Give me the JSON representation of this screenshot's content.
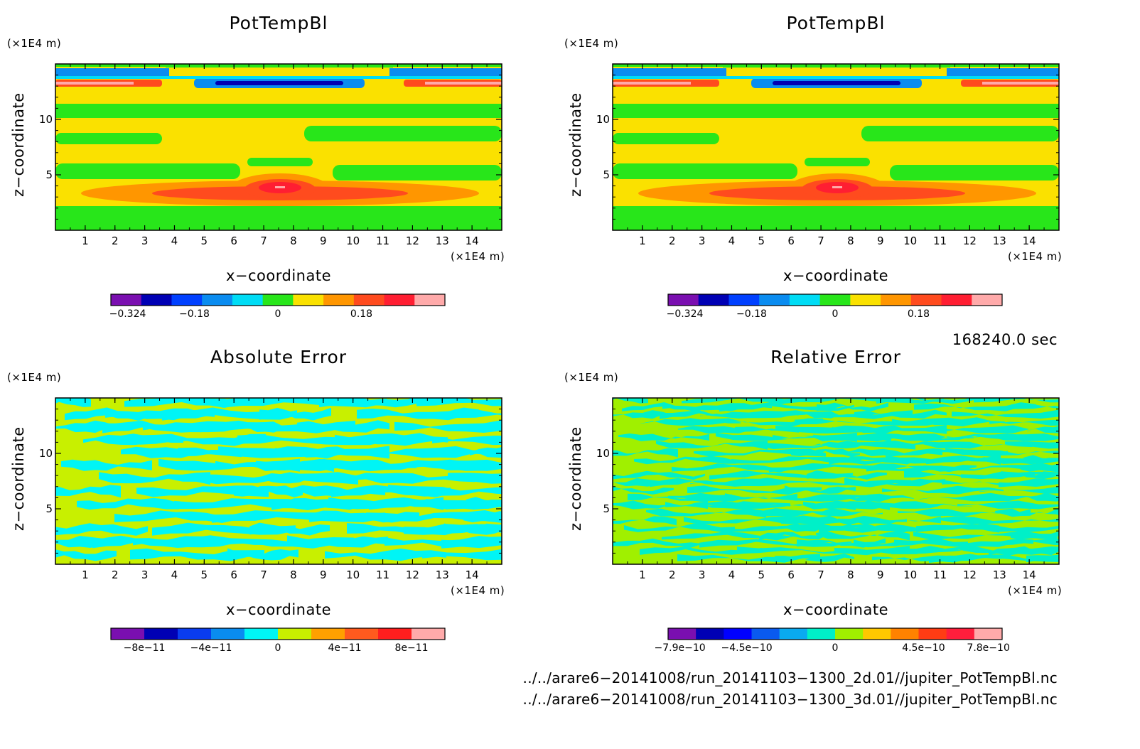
{
  "chart_data": [
    {
      "type": "heatmap",
      "title": "PotTempBl",
      "xlabel": "x−coordinate",
      "ylabel": "z−coordinate",
      "x_unit": "(×1E4 m)",
      "y_unit": "(×1E4 m)",
      "xlim": [
        0,
        15
      ],
      "ylim": [
        0,
        15
      ],
      "x_ticks": [
        "1",
        "2",
        "3",
        "4",
        "5",
        "6",
        "7",
        "8",
        "9",
        "10",
        "11",
        "12",
        "13",
        "14"
      ],
      "y_ticks": [
        "5",
        "10"
      ],
      "colorbar": {
        "colors": [
          "#7a0fb0",
          "#0000b4",
          "#0040ff",
          "#0a8cf0",
          "#00dcf5",
          "#28e61a",
          "#fae100",
          "#ff9600",
          "#ff4b1e",
          "#ff1e32",
          "#ffaaaa"
        ],
        "tick_labels": [
          "−0.324",
          "−0.18",
          "0",
          "0.18"
        ],
        "tick_values": [
          -0.324,
          -0.18,
          0,
          0.18
        ],
        "range": [
          -0.36,
          0.36
        ]
      }
    },
    {
      "type": "heatmap",
      "title": "PotTempBl",
      "xlabel": "x−coordinate",
      "ylabel": "z−coordinate",
      "x_unit": "(×1E4 m)",
      "y_unit": "(×1E4 m)",
      "xlim": [
        0,
        15
      ],
      "ylim": [
        0,
        15
      ],
      "x_ticks": [
        "1",
        "2",
        "3",
        "4",
        "5",
        "6",
        "7",
        "8",
        "9",
        "10",
        "11",
        "12",
        "13",
        "14"
      ],
      "y_ticks": [
        "5",
        "10"
      ],
      "colorbar": {
        "colors": [
          "#7a0fb0",
          "#0000b4",
          "#0040ff",
          "#0a8cf0",
          "#00dcf5",
          "#28e61a",
          "#fae100",
          "#ff9600",
          "#ff4b1e",
          "#ff1e32",
          "#ffaaaa"
        ],
        "tick_labels": [
          "−0.324",
          "−0.18",
          "0",
          "0.18"
        ],
        "tick_values": [
          -0.324,
          -0.18,
          0,
          0.18
        ],
        "range": [
          -0.36,
          0.36
        ]
      }
    },
    {
      "type": "heatmap",
      "title": "Absolute Error",
      "xlabel": "x−coordinate",
      "ylabel": "z−coordinate",
      "x_unit": "(×1E4 m)",
      "y_unit": "(×1E4 m)",
      "xlim": [
        0,
        15
      ],
      "ylim": [
        0,
        15
      ],
      "x_ticks": [
        "1",
        "2",
        "3",
        "4",
        "5",
        "6",
        "7",
        "8",
        "9",
        "10",
        "11",
        "12",
        "13",
        "14"
      ],
      "y_ticks": [
        "5",
        "10"
      ],
      "colorbar": {
        "colors": [
          "#7a0fb0",
          "#0000b4",
          "#0a3cf0",
          "#0a8cf0",
          "#00f5f5",
          "#c8f000",
          "#ffa000",
          "#ff5a1e",
          "#ff1e1e",
          "#ffaaaa"
        ],
        "tick_labels": [
          "−8e−11",
          "−4e−11",
          "0",
          "4e−11",
          "8e−11"
        ],
        "tick_values": [
          -8e-11,
          -4e-11,
          0,
          4e-11,
          8e-11
        ],
        "range": [
          -1e-10,
          1e-10
        ]
      }
    },
    {
      "type": "heatmap",
      "title": "Relative Error",
      "xlabel": "x−coordinate",
      "ylabel": "z−coordinate",
      "x_unit": "(×1E4 m)",
      "y_unit": "(×1E4 m)",
      "xlim": [
        0,
        15
      ],
      "ylim": [
        0,
        15
      ],
      "x_ticks": [
        "1",
        "2",
        "3",
        "4",
        "5",
        "6",
        "7",
        "8",
        "9",
        "10",
        "11",
        "12",
        "13",
        "14"
      ],
      "y_ticks": [
        "5",
        "10"
      ],
      "colorbar": {
        "colors": [
          "#7a0fb0",
          "#0000b4",
          "#0000ff",
          "#0a5af0",
          "#0aaaf0",
          "#00f0c8",
          "#a0f000",
          "#ffc800",
          "#ff8200",
          "#ff3c14",
          "#ff1e3c",
          "#ffaaaa"
        ],
        "tick_labels": [
          "−7.9e−10",
          "−4.5e−10",
          "0",
          "4.5e−10",
          "7.8e−10"
        ],
        "tick_values": [
          -7.9e-10,
          -4.5e-10,
          0,
          4.5e-10,
          7.8e-10
        ],
        "range": [
          -8.5e-10,
          8.5e-10
        ]
      }
    }
  ],
  "time_label": "168240.0 sec",
  "files": [
    "../../arare6−20141008/run_20141103−1300_2d.01//jupiter_PotTempBl.nc",
    "../../arare6−20141008/run_20141103−1300_3d.01//jupiter_PotTempBl.nc"
  ]
}
